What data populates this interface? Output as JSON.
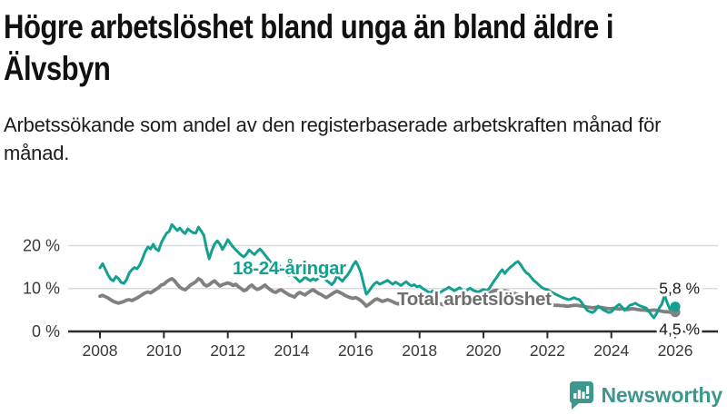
{
  "header": {
    "title": "Högre arbetslöshet bland unga än bland äldre i Älvsbyn",
    "subtitle": "Arbetssökande som andel av den registerbaserade arbetskraften månad för månad."
  },
  "chart_data": {
    "type": "line",
    "title": "Högre arbetslöshet bland unga än bland äldre i Älvsbyn",
    "subtitle": "Arbetssökande som andel av den registerbaserade arbetskraften månad för månad.",
    "x_start_year": 2008,
    "months_per_point": 1,
    "x_tick_labels": [
      "2008",
      "2010",
      "2012",
      "2014",
      "2016",
      "2018",
      "2020",
      "2022",
      "2024",
      "2026"
    ],
    "y_tick_labels": [
      {
        "label": "0 %",
        "value": 0
      },
      {
        "label": "10 %",
        "value": 10
      },
      {
        "label": "20 %",
        "value": 20
      }
    ],
    "grid_values": [
      10,
      20
    ],
    "ylim": [
      0,
      27
    ],
    "grid_on": true,
    "legend_position": "inline-labels",
    "colors": {
      "grid": "#dcdcdc",
      "axis": "#2b2b2b",
      "tick_text": "#3a3a3a",
      "end_label_text": "#1a1a1a"
    },
    "series": [
      {
        "name": "18-24-åringar",
        "color": "#14a090",
        "label_color": "#14a090",
        "end_label": "5,8 %",
        "end_value": 5.8,
        "label_pos": {
          "x": 256,
          "y": 295
        },
        "values": [
          14.8,
          15.8,
          14.5,
          13.2,
          12.2,
          11.8,
          12.8,
          12.3,
          11.4,
          11.2,
          12.1,
          13.6,
          14.4,
          14.9,
          14.6,
          15.6,
          17.0,
          18.6,
          19.7,
          19.2,
          20.3,
          19.2,
          18.8,
          20.6,
          21.8,
          22.9,
          23.3,
          24.9,
          24.2,
          23.5,
          24.1,
          23.3,
          22.8,
          23.9,
          23.4,
          23.0,
          22.9,
          24.3,
          23.4,
          22.4,
          19.4,
          16.9,
          18.8,
          20.3,
          21.1,
          20.4,
          19.1,
          20.1,
          21.4,
          20.5,
          19.7,
          19.0,
          18.4,
          17.8,
          17.4,
          18.0,
          19.0,
          18.4,
          17.9,
          18.6,
          19.2,
          18.6,
          17.8,
          17.0,
          16.2,
          15.6,
          15.0,
          15.5,
          14.8,
          14.2,
          13.6,
          13.0,
          13.4,
          12.8,
          12.2,
          11.6,
          12.0,
          12.7,
          12.2,
          11.8,
          12.3,
          11.9,
          12.4,
          12.8,
          12.4,
          11.9,
          11.4,
          10.9,
          11.6,
          12.9,
          12.3,
          11.7,
          12.5,
          13.2,
          14.2,
          15.4,
          16.3,
          15.2,
          13.6,
          11.0,
          8.7,
          9.4,
          10.3,
          11.1,
          11.5,
          11.0,
          11.3,
          11.6,
          11.9,
          11.4,
          11.0,
          11.5,
          11.1,
          10.7,
          11.2,
          11.6,
          11.0,
          10.6,
          10.9,
          10.4,
          10.6,
          10.1,
          9.7,
          9.3,
          9.0,
          9.5,
          9.1,
          8.8,
          9.2,
          9.6,
          9.9,
          10.3,
          9.9,
          9.5,
          9.8,
          10.2,
          9.7,
          9.3,
          9.7,
          10.1,
          9.6,
          9.4,
          9.2,
          9.5,
          9.8,
          9.5,
          9.9,
          10.8,
          11.8,
          12.6,
          13.6,
          14.4,
          13.5,
          14.3,
          14.9,
          15.4,
          16.0,
          16.3,
          15.5,
          14.5,
          13.7,
          13.3,
          12.5,
          11.8,
          11.3,
          10.7,
          10.2,
          9.9,
          9.7,
          9.4,
          9.0,
          8.7,
          8.4,
          8.1,
          7.8,
          7.6,
          7.4,
          7.6,
          7.9,
          7.6,
          7.4,
          6.6,
          5.7,
          4.9,
          4.6,
          4.4,
          4.9,
          5.9,
          5.5,
          5.0,
          4.7,
          4.4,
          4.6,
          5.2,
          5.9,
          6.3,
          5.7,
          4.9,
          5.5,
          6.1,
          6.3,
          6.6,
          6.2,
          5.9,
          5.7,
          5.5,
          4.8,
          3.9,
          3.2,
          4.2,
          5.5,
          6.4,
          8.5,
          6.6,
          5.2,
          5.4,
          5.8
        ]
      },
      {
        "name": "Total arbetslöshet",
        "color": "#808080",
        "label_color": "#6e6e6e",
        "end_label": "4,5 %",
        "end_value": 4.5,
        "label_pos": {
          "x": 437,
          "y": 329
        },
        "values": [
          8.2,
          8.4,
          8.1,
          7.8,
          7.4,
          7.0,
          6.8,
          6.6,
          6.8,
          7.0,
          7.3,
          7.4,
          7.2,
          7.5,
          7.8,
          8.2,
          8.6,
          9.0,
          9.2,
          9.0,
          9.4,
          9.8,
          10.2,
          10.8,
          11.0,
          11.6,
          12.0,
          12.3,
          11.8,
          11.0,
          10.3,
          9.9,
          9.7,
          10.2,
          10.8,
          11.2,
          11.6,
          12.3,
          11.9,
          11.0,
          10.6,
          10.9,
          11.4,
          11.8,
          11.2,
          10.6,
          10.9,
          11.1,
          11.3,
          11.1,
          10.7,
          11.0,
          10.4,
          10.0,
          9.5,
          9.7,
          10.4,
          10.8,
          10.2,
          9.8,
          10.0,
          10.4,
          10.8,
          10.2,
          9.7,
          9.3,
          9.1,
          9.5,
          9.7,
          9.3,
          8.9,
          8.5,
          8.3,
          8.0,
          8.7,
          9.1,
          8.8,
          8.5,
          9.0,
          9.4,
          9.7,
          9.3,
          8.9,
          8.6,
          8.2,
          7.9,
          8.3,
          8.7,
          9.1,
          9.4,
          9.1,
          8.8,
          8.4,
          8.1,
          7.9,
          7.7,
          7.9,
          7.6,
          7.2,
          6.6,
          5.9,
          6.3,
          6.8,
          7.3,
          7.6,
          7.3,
          7.0,
          7.2,
          7.4,
          7.2,
          6.9,
          6.6,
          6.4,
          6.7,
          7.0,
          7.2,
          6.9,
          6.6,
          6.8,
          7.0,
          7.1,
          6.9,
          6.6,
          6.4,
          6.2,
          6.5,
          6.8,
          6.6,
          6.4,
          6.2,
          6.4,
          6.6,
          6.7,
          6.5,
          6.3,
          6.2,
          6.4,
          6.6,
          6.9,
          7.1,
          7.3,
          7.5,
          7.8,
          8.2,
          8.3,
          8.5,
          8.8,
          9.2,
          9.5,
          9.6,
          9.4,
          9.3,
          9.5,
          9.4,
          9.2,
          9.0,
          8.8,
          8.6,
          8.3,
          8.0,
          7.7,
          7.4,
          7.2,
          7.0,
          6.8,
          6.7,
          6.6,
          6.5,
          6.4,
          6.3,
          6.2,
          6.1,
          6.1,
          6.0,
          6.0,
          5.9,
          5.9,
          6.0,
          6.1,
          6.1,
          6.0,
          5.9,
          5.8,
          5.7,
          5.6,
          5.5,
          5.6,
          5.7,
          5.6,
          5.5,
          5.4,
          5.3,
          5.3,
          5.4,
          5.3,
          5.2,
          5.3,
          5.2,
          5.1,
          5.2,
          5.3,
          5.2,
          5.1,
          5.0,
          5.0,
          4.9,
          4.8,
          4.9,
          5.0,
          4.9,
          4.8,
          4.7,
          4.6,
          4.6,
          4.5,
          4.5,
          4.5
        ]
      }
    ]
  },
  "footer": {
    "brand": "Newsworthy",
    "brand_color": "#3f968f"
  }
}
